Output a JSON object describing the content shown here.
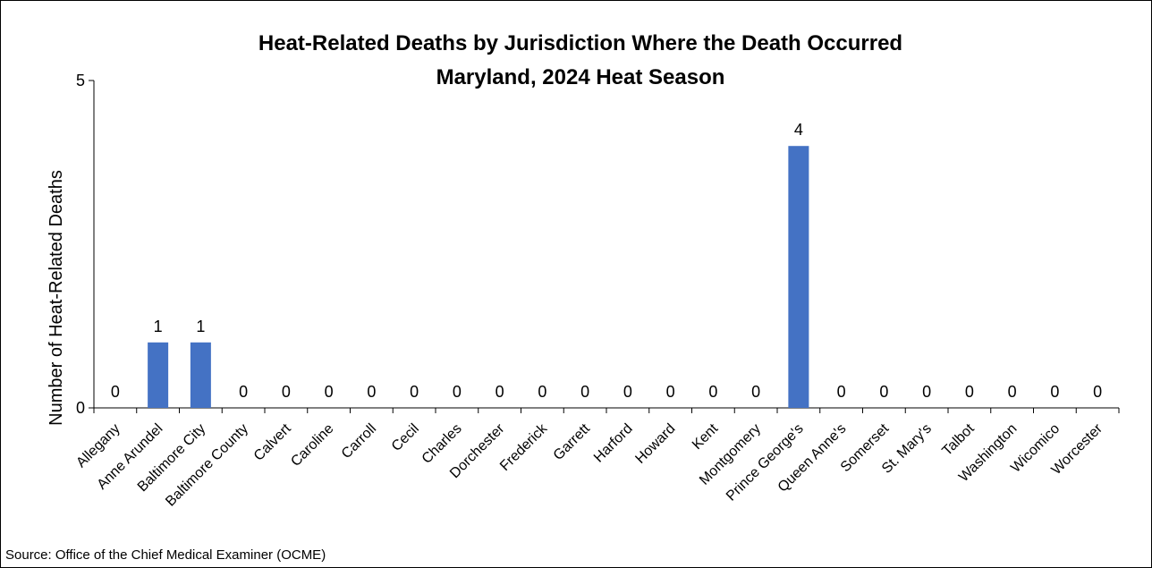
{
  "chart_data": {
    "type": "bar",
    "title": [
      "Heat-Related Deaths by Jurisdiction Where the Death Occurred",
      "Maryland, 2024 Heat Season"
    ],
    "xlabel": "",
    "ylabel": "Number of Heat-Related Deaths",
    "ylim": [
      0,
      5
    ],
    "yticks": [
      "0",
      "5"
    ],
    "categories": [
      "Allegany",
      "Anne Arundel",
      "Baltimore City",
      "Baltimore County",
      "Calvert",
      "Caroline",
      "Carroll",
      "Cecil",
      "Charles",
      "Dorchester",
      "Frederick",
      "Garrett",
      "Harford",
      "Howard",
      "Kent",
      "Montgomery",
      "Prince George's",
      "Queen Anne's",
      "Somerset",
      "St. Mary's",
      "Talbot",
      "Washington",
      "Wicomico",
      "Worcester"
    ],
    "values": [
      0,
      1,
      1,
      0,
      0,
      0,
      0,
      0,
      0,
      0,
      0,
      0,
      0,
      0,
      0,
      0,
      4,
      0,
      0,
      0,
      0,
      0,
      0,
      0
    ],
    "bar_color": "#4472C4",
    "data_labels": true,
    "grid": false,
    "legend": "none"
  },
  "source": "Source: Office of the Chief Medical Examiner (OCME)"
}
